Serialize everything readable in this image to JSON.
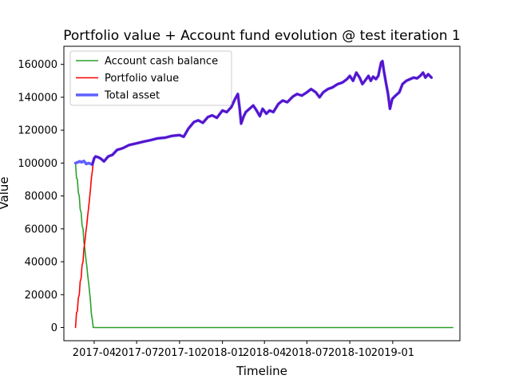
{
  "chart_data": {
    "type": "line",
    "title": "Portfolio value + Account fund evolution @ test iteration 1",
    "xlabel": "Timeline",
    "ylabel": "Value",
    "xlim": [
      "2017-01-26",
      "2019-05-25"
    ],
    "ylim": [
      -8000,
      171000
    ],
    "yticks": [
      0,
      20000,
      40000,
      60000,
      80000,
      100000,
      120000,
      140000,
      160000
    ],
    "xticks": [
      {
        "date": "2017-04-01",
        "label": "2017-04"
      },
      {
        "date": "2017-07-01",
        "label": "2017-07"
      },
      {
        "date": "2017-10-01",
        "label": "2017-10"
      },
      {
        "date": "2018-01-01",
        "label": "2018-01"
      },
      {
        "date": "2018-04-01",
        "label": "2018-04"
      },
      {
        "date": "2018-07-01",
        "label": "2018-07"
      },
      {
        "date": "2018-10-01",
        "label": "2018-10"
      },
      {
        "date": "2019-01-01",
        "label": "2019-01"
      }
    ],
    "grid": false,
    "legend_position": "upper-left",
    "series": [
      {
        "name": "Account cash balance",
        "color": "#2ca02c",
        "points": [
          [
            "2017-02-20",
            100000
          ],
          [
            "2017-02-22",
            91000
          ],
          [
            "2017-02-24",
            90000
          ],
          [
            "2017-02-26",
            82000
          ],
          [
            "2017-02-28",
            80000
          ],
          [
            "2017-03-02",
            72000
          ],
          [
            "2017-03-04",
            70000
          ],
          [
            "2017-03-06",
            62000
          ],
          [
            "2017-03-08",
            60000
          ],
          [
            "2017-03-10",
            52000
          ],
          [
            "2017-03-12",
            48000
          ],
          [
            "2017-03-14",
            42000
          ],
          [
            "2017-03-16",
            38000
          ],
          [
            "2017-03-18",
            32000
          ],
          [
            "2017-03-20",
            27000
          ],
          [
            "2017-03-22",
            22000
          ],
          [
            "2017-03-24",
            16000
          ],
          [
            "2017-03-26",
            8000
          ],
          [
            "2017-03-28",
            5000
          ],
          [
            "2017-03-30",
            0
          ],
          [
            "2019-05-10",
            0
          ]
        ]
      },
      {
        "name": "Portfolio value",
        "color": "#ff0000",
        "points": [
          [
            "2017-02-20",
            0
          ],
          [
            "2017-02-22",
            9000
          ],
          [
            "2017-02-24",
            10000
          ],
          [
            "2017-02-26",
            18000
          ],
          [
            "2017-02-28",
            20000
          ],
          [
            "2017-03-02",
            28000
          ],
          [
            "2017-03-04",
            30000
          ],
          [
            "2017-03-06",
            38000
          ],
          [
            "2017-03-08",
            40000
          ],
          [
            "2017-03-10",
            48000
          ],
          [
            "2017-03-12",
            52000
          ],
          [
            "2017-03-14",
            58000
          ],
          [
            "2017-03-16",
            62000
          ],
          [
            "2017-03-18",
            68000
          ],
          [
            "2017-03-20",
            73000
          ],
          [
            "2017-03-22",
            78000
          ],
          [
            "2017-03-24",
            84000
          ],
          [
            "2017-03-26",
            91000
          ],
          [
            "2017-03-28",
            95000
          ],
          [
            "2017-03-30",
            100000
          ]
        ]
      },
      {
        "name": "Total asset",
        "color": "#6060ff",
        "points": [
          [
            "2017-02-20",
            100000
          ],
          [
            "2017-02-25",
            100500
          ],
          [
            "2017-03-01",
            101000
          ],
          [
            "2017-03-05",
            100500
          ],
          [
            "2017-03-10",
            101200
          ],
          [
            "2017-03-15",
            99500
          ],
          [
            "2017-03-20",
            100000
          ],
          [
            "2017-03-25",
            99500
          ],
          [
            "2017-03-28",
            99000
          ],
          [
            "2017-04-01",
            103000
          ],
          [
            "2017-04-04",
            104000
          ],
          [
            "2017-04-10",
            103500
          ],
          [
            "2017-04-16",
            102500
          ],
          [
            "2017-04-22",
            101000
          ],
          [
            "2017-05-01",
            104000
          ],
          [
            "2017-05-10",
            105000
          ],
          [
            "2017-05-20",
            108000
          ],
          [
            "2017-06-01",
            109000
          ],
          [
            "2017-06-15",
            111000
          ],
          [
            "2017-07-01",
            112000
          ],
          [
            "2017-07-15",
            113000
          ],
          [
            "2017-08-01",
            114000
          ],
          [
            "2017-08-15",
            115000
          ],
          [
            "2017-09-01",
            115500
          ],
          [
            "2017-09-15",
            116500
          ],
          [
            "2017-10-01",
            117000
          ],
          [
            "2017-10-10",
            116000
          ],
          [
            "2017-10-20",
            121000
          ],
          [
            "2017-11-01",
            125000
          ],
          [
            "2017-11-10",
            126000
          ],
          [
            "2017-11-20",
            124500
          ],
          [
            "2017-12-01",
            128000
          ],
          [
            "2017-12-10",
            129000
          ],
          [
            "2017-12-20",
            127500
          ],
          [
            "2018-01-01",
            132000
          ],
          [
            "2018-01-10",
            131000
          ],
          [
            "2018-01-20",
            134000
          ],
          [
            "2018-01-28",
            139000
          ],
          [
            "2018-02-03",
            142000
          ],
          [
            "2018-02-07",
            133000
          ],
          [
            "2018-02-10",
            124000
          ],
          [
            "2018-02-15",
            128000
          ],
          [
            "2018-02-20",
            131000
          ],
          [
            "2018-02-28",
            133000
          ],
          [
            "2018-03-08",
            135000
          ],
          [
            "2018-03-15",
            132000
          ],
          [
            "2018-03-22",
            128500
          ],
          [
            "2018-03-28",
            133000
          ],
          [
            "2018-04-05",
            130000
          ],
          [
            "2018-04-12",
            132000
          ],
          [
            "2018-04-20",
            131000
          ],
          [
            "2018-05-01",
            136000
          ],
          [
            "2018-05-10",
            138000
          ],
          [
            "2018-05-20",
            137000
          ],
          [
            "2018-06-01",
            140500
          ],
          [
            "2018-06-10",
            142000
          ],
          [
            "2018-06-20",
            141000
          ],
          [
            "2018-07-01",
            143000
          ],
          [
            "2018-07-10",
            145000
          ],
          [
            "2018-07-20",
            143000
          ],
          [
            "2018-07-28",
            140000
          ],
          [
            "2018-08-05",
            143000
          ],
          [
            "2018-08-15",
            145000
          ],
          [
            "2018-08-25",
            146000
          ],
          [
            "2018-09-05",
            148000
          ],
          [
            "2018-09-15",
            149000
          ],
          [
            "2018-09-25",
            151000
          ],
          [
            "2018-10-01",
            153000
          ],
          [
            "2018-10-08",
            150000
          ],
          [
            "2018-10-15",
            155000
          ],
          [
            "2018-10-22",
            152000
          ],
          [
            "2018-10-28",
            148000
          ],
          [
            "2018-11-05",
            151000
          ],
          [
            "2018-11-10",
            153000
          ],
          [
            "2018-11-15",
            150000
          ],
          [
            "2018-11-20",
            152500
          ],
          [
            "2018-11-26",
            151000
          ],
          [
            "2018-12-01",
            153000
          ],
          [
            "2018-12-04",
            157000
          ],
          [
            "2018-12-07",
            161000
          ],
          [
            "2018-12-10",
            162000
          ],
          [
            "2018-12-13",
            156000
          ],
          [
            "2018-12-18",
            148000
          ],
          [
            "2018-12-22",
            142000
          ],
          [
            "2018-12-26",
            133000
          ],
          [
            "2018-12-31",
            139000
          ],
          [
            "2019-01-07",
            141000
          ],
          [
            "2019-01-15",
            143000
          ],
          [
            "2019-01-22",
            148000
          ],
          [
            "2019-01-30",
            150000
          ],
          [
            "2019-02-07",
            151000
          ],
          [
            "2019-02-15",
            152000
          ],
          [
            "2019-02-22",
            151500
          ],
          [
            "2019-03-01",
            153000
          ],
          [
            "2019-03-07",
            155000
          ],
          [
            "2019-03-12",
            152000
          ],
          [
            "2019-03-18",
            154000
          ],
          [
            "2019-03-25",
            152000
          ]
        ]
      }
    ],
    "overlay_color": "#5a10c8"
  }
}
